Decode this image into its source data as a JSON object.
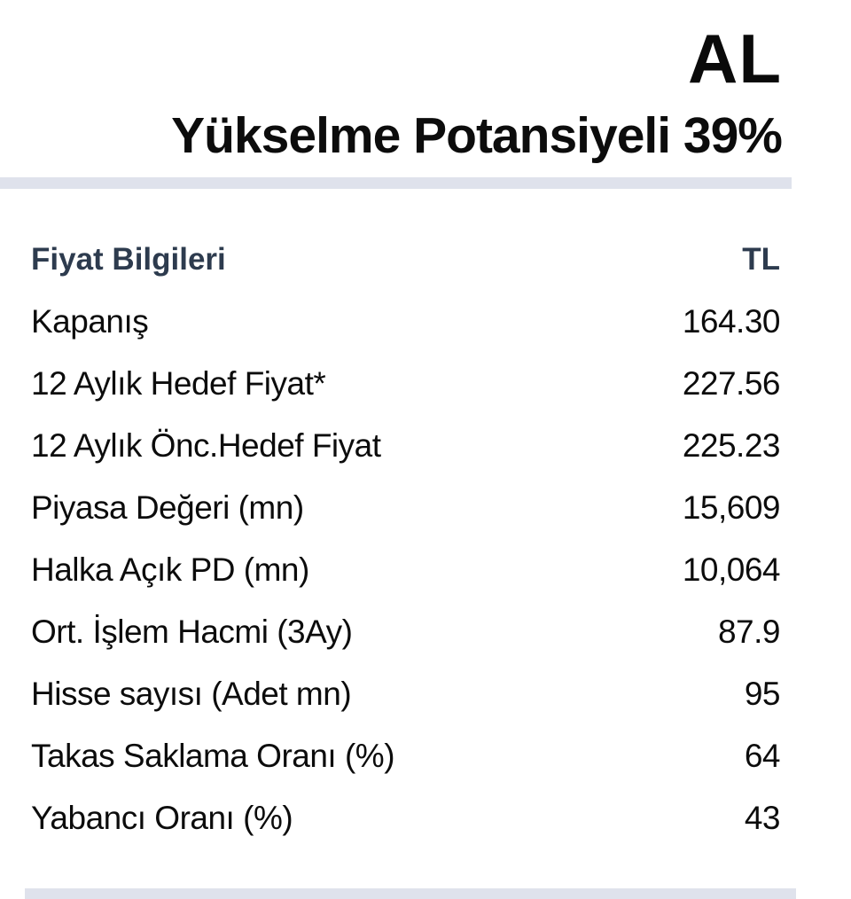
{
  "header": {
    "rating": "AL",
    "subtitle": "Yükselme Potansiyeli 39%"
  },
  "table": {
    "title": "Fiyat Bilgileri",
    "unit": "TL",
    "rows": [
      {
        "label": "Kapanış",
        "value": "164.30"
      },
      {
        "label": "12 Aylık Hedef Fiyat*",
        "value": "227.56"
      },
      {
        "label": "12 Aylık Önc.Hedef Fiyat",
        "value": "225.23"
      },
      {
        "label": "Piyasa Değeri (mn)",
        "value": "15,609"
      },
      {
        "label": "Halka Açık PD (mn)",
        "value": "10,064"
      },
      {
        "label": "Ort. İşlem Hacmi (3Ay)",
        "value": "87.9"
      },
      {
        "label": "Hisse sayısı (Adet mn)",
        "value": "95"
      },
      {
        "label": "Takas Saklama Oranı (%)",
        "value": "64"
      },
      {
        "label": "Yabancı Oranı (%)",
        "value": "43"
      }
    ]
  },
  "colors": {
    "background": "#ffffff",
    "rating_text": "#0a0a0a",
    "subtitle_text": "#0c0c0c",
    "table_header_text": "#2d3b4e",
    "row_text": "#0c0c0c",
    "divider_bar": "#dfe2ec"
  }
}
